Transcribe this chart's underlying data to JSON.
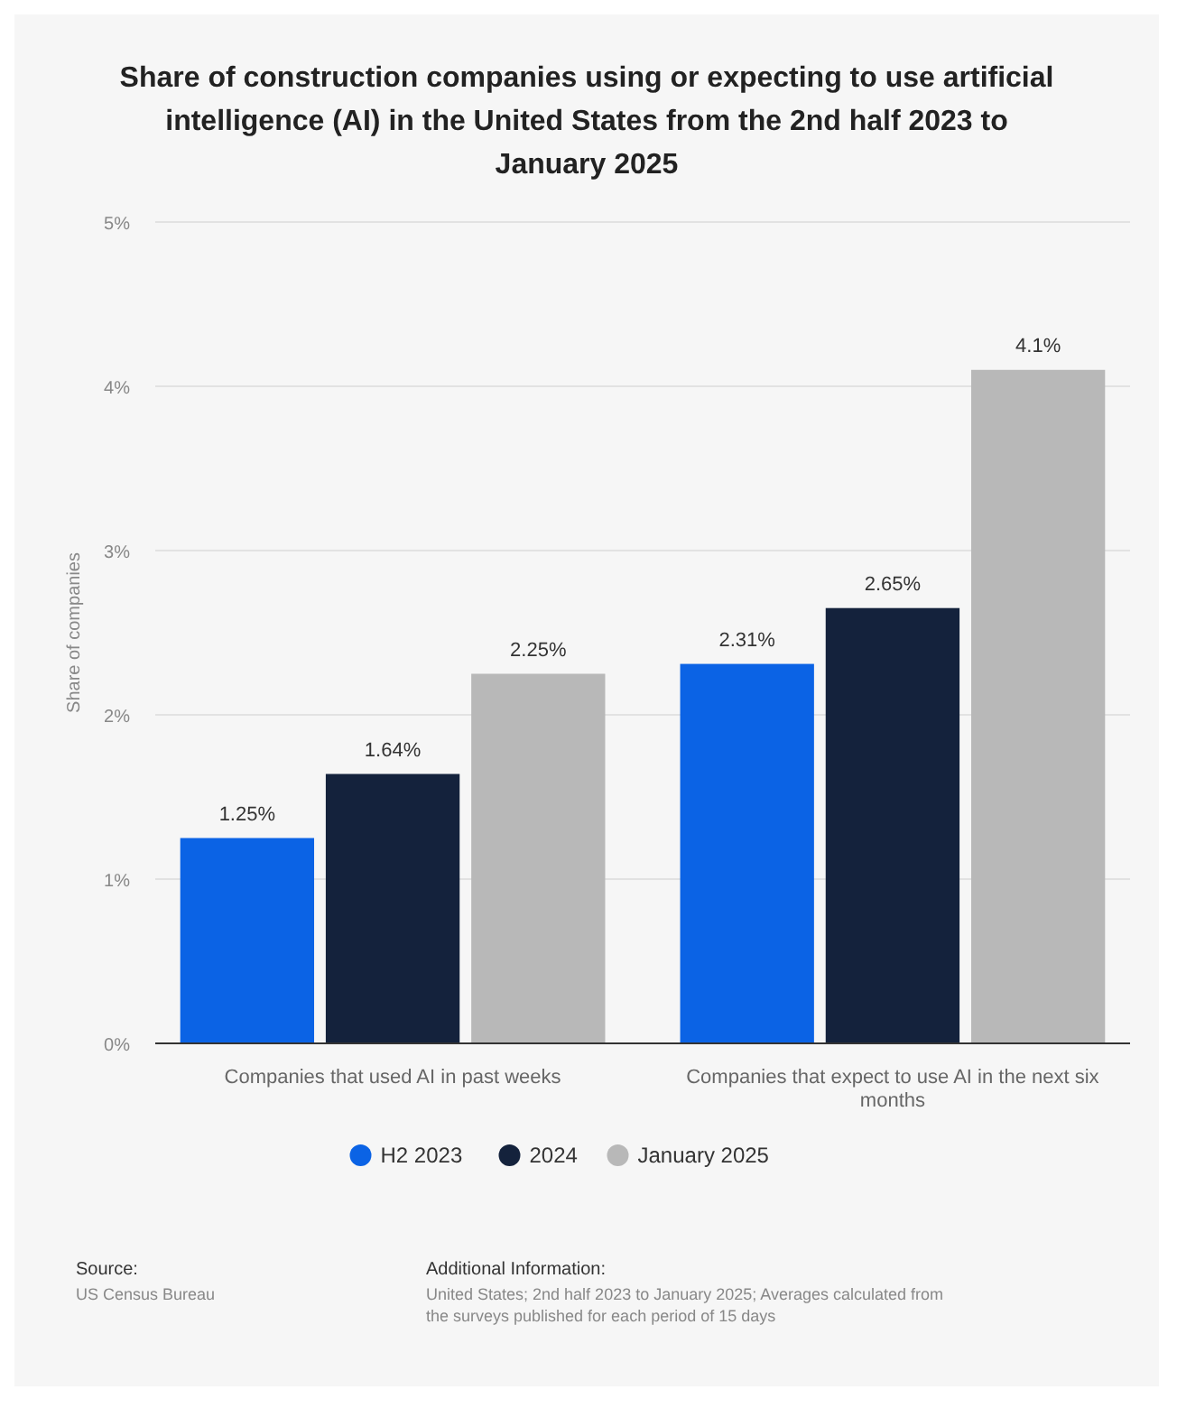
{
  "chart_data": {
    "type": "bar",
    "title": "Share of construction companies using or expecting to use artificial intelligence (AI) in the United States from the 2nd half 2023 to January 2025",
    "ylabel": "Share of companies",
    "categories": [
      "Companies that used AI in past weeks",
      "Companies that expect to use AI in the next six months"
    ],
    "series": [
      {
        "name": "H2 2023",
        "color": "#0b63e5",
        "values": [
          1.25,
          2.31
        ],
        "value_labels": [
          "1.25%",
          "2.31%"
        ]
      },
      {
        "name": "2024",
        "color": "#14223c",
        "values": [
          1.64,
          2.65
        ],
        "value_labels": [
          "1.64%",
          "2.65%"
        ]
      },
      {
        "name": "January 2025",
        "color": "#b8b8b8",
        "values": [
          2.25,
          4.1
        ],
        "value_labels": [
          "2.25%",
          "4.1%"
        ]
      }
    ],
    "ylim": [
      0,
      5
    ],
    "yticks": [
      {
        "value": 0,
        "label": "0%"
      },
      {
        "value": 1,
        "label": "1%"
      },
      {
        "value": 2,
        "label": "2%"
      },
      {
        "value": 3,
        "label": "3%"
      },
      {
        "value": 4,
        "label": "4%"
      },
      {
        "value": 5,
        "label": "5%"
      }
    ],
    "grid": "y",
    "legend": "bottom",
    "annotations": [
      "Source:",
      "US Census Bureau",
      "Additional Information:",
      "United States; 2nd half 2023 to January 2025; Averages calculated from the surveys published for each period of 15 days"
    ]
  }
}
